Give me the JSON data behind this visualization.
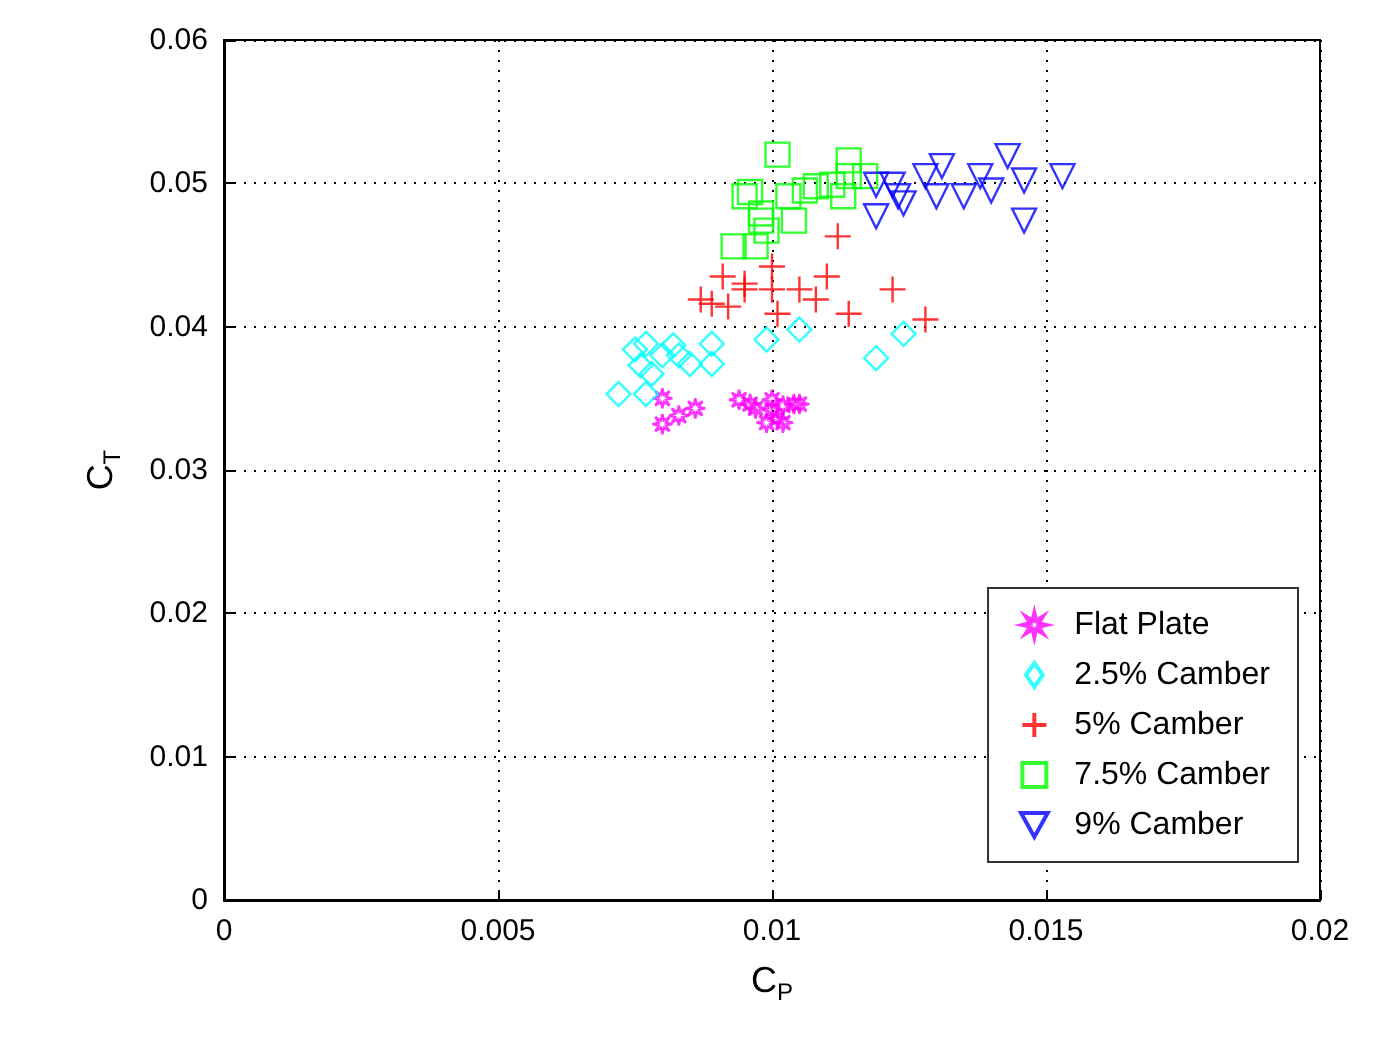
{
  "chart_data": {
    "type": "scatter",
    "xlabel": "C$_{P}$",
    "ylabel": "C$_{T}$",
    "xlim": [
      0,
      0.02
    ],
    "ylim": [
      0,
      0.06
    ],
    "xticks": [
      0,
      0.005,
      0.01,
      0.015,
      0.02
    ],
    "yticks": [
      0,
      0.01,
      0.02,
      0.03,
      0.04,
      0.05,
      0.06
    ],
    "grid": true,
    "legend": "bottom right",
    "series": [
      {
        "name": "Flat Plate",
        "color": "#ff00ff",
        "marker": "star",
        "x": [
          0.008,
          0.008,
          0.0083,
          0.0086,
          0.0094,
          0.0096,
          0.0097,
          0.01,
          0.0101,
          0.0099,
          0.0102,
          0.0104,
          0.0102,
          0.0105,
          0.01
        ],
        "values": [
          0.035,
          0.0332,
          0.0338,
          0.0343,
          0.0349,
          0.0346,
          0.0343,
          0.0342,
          0.0336,
          0.0333,
          0.0345,
          0.0346,
          0.0333,
          0.0346,
          0.0349
        ]
      },
      {
        "name": "2.5% Camber",
        "color": "#00ffff",
        "marker": "diamond",
        "x": [
          0.0072,
          0.0075,
          0.0077,
          0.0076,
          0.0078,
          0.0077,
          0.008,
          0.0082,
          0.0083,
          0.0085,
          0.0089,
          0.0089,
          0.0099,
          0.0105,
          0.0119,
          0.0124
        ],
        "values": [
          0.0353,
          0.0384,
          0.0388,
          0.0373,
          0.0367,
          0.0353,
          0.038,
          0.0387,
          0.038,
          0.0374,
          0.0388,
          0.0374,
          0.0391,
          0.0398,
          0.0378,
          0.0395
        ]
      },
      {
        "name": "5% Camber",
        "color": "#ff0000",
        "marker": "cross",
        "x": [
          0.0087,
          0.0089,
          0.0091,
          0.0092,
          0.0095,
          0.0095,
          0.01,
          0.01,
          0.0101,
          0.0105,
          0.0108,
          0.011,
          0.0112,
          0.0114,
          0.0122,
          0.0128
        ],
        "values": [
          0.0419,
          0.0416,
          0.0435,
          0.0414,
          0.043,
          0.0426,
          0.0426,
          0.0442,
          0.0409,
          0.0426,
          0.0419,
          0.0435,
          0.0463,
          0.0409,
          0.0426,
          0.0405
        ]
      },
      {
        "name": "7.5% Camber",
        "color": "#00ff00",
        "marker": "square",
        "x": [
          0.0101,
          0.0096,
          0.0095,
          0.0098,
          0.0098,
          0.0099,
          0.0093,
          0.0097,
          0.0103,
          0.0104,
          0.0106,
          0.0108,
          0.0111,
          0.0113,
          0.0114,
          0.0114,
          0.0117
        ],
        "values": [
          0.052,
          0.0494,
          0.0491,
          0.0479,
          0.0474,
          0.0467,
          0.0456,
          0.0456,
          0.0491,
          0.0474,
          0.0495,
          0.0498,
          0.0499,
          0.0491,
          0.0516,
          0.0505,
          0.0505
        ]
      },
      {
        "name": "9% Camber",
        "color": "#0000ff",
        "marker": "triangle",
        "x": [
          0.0119,
          0.0119,
          0.0122,
          0.0123,
          0.0124,
          0.0128,
          0.013,
          0.0131,
          0.0135,
          0.0138,
          0.014,
          0.0143,
          0.0146,
          0.0146,
          0.0153
        ],
        "values": [
          0.0499,
          0.0477,
          0.0499,
          0.0491,
          0.0486,
          0.0505,
          0.0491,
          0.0512,
          0.0491,
          0.0505,
          0.0495,
          0.0519,
          0.0502,
          0.0474,
          0.0505
        ]
      }
    ]
  }
}
